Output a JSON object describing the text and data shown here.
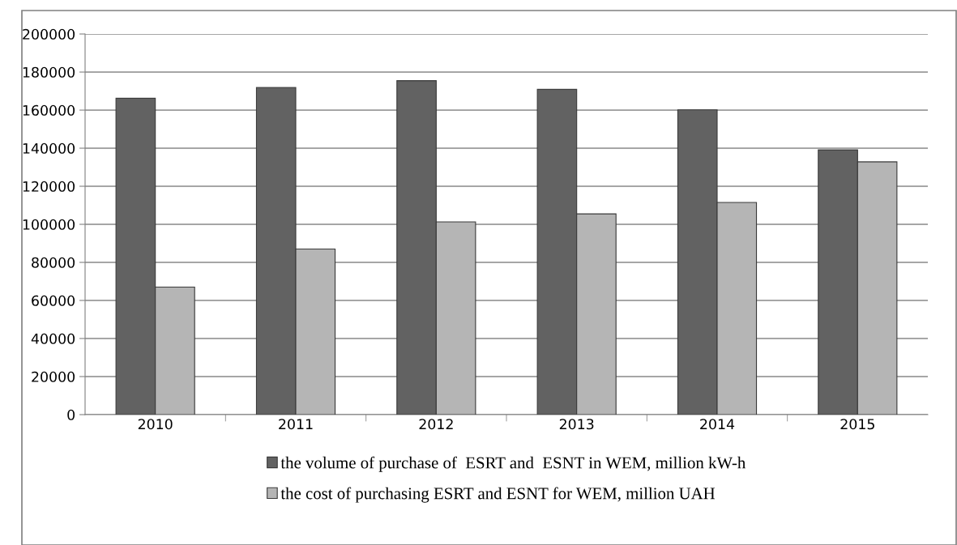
{
  "chart_data": {
    "type": "bar",
    "categories": [
      "2010",
      "2011",
      "2012",
      "2013",
      "2014",
      "2015"
    ],
    "series": [
      {
        "name": "the volume of purchase of  ESRT and  ESNT in WEM, million kW-h",
        "color": "#626262",
        "values": [
          166200,
          171900,
          175500,
          170900,
          160200,
          139100
        ]
      },
      {
        "name": "the cost of purchasing ESRT and ESNT for WEM, million UAH",
        "color": "#b5b5b5",
        "values": [
          67000,
          87000,
          101300,
          105500,
          111500,
          132800
        ]
      }
    ],
    "ylim": [
      0,
      200000
    ],
    "yticks": [
      0,
      20000,
      40000,
      60000,
      80000,
      100000,
      120000,
      140000,
      160000,
      180000,
      200000
    ],
    "grid": "y",
    "legend": "bottom"
  }
}
